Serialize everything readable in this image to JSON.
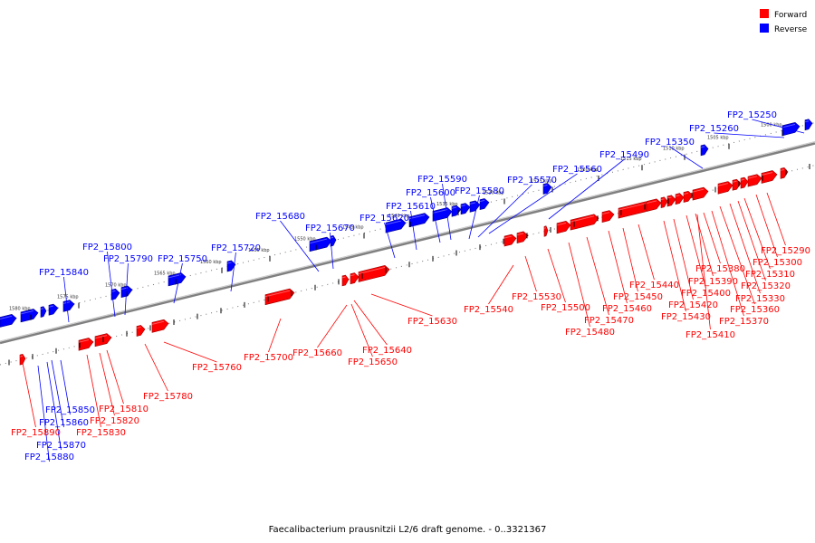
{
  "caption": "Faecalibacterium prausnitzii L2/6 draft genome. - 0..3321367",
  "legend": [
    {
      "label": "Forward",
      "color": "#ff0000"
    },
    {
      "label": "Reverse",
      "color": "#0000ff"
    }
  ],
  "colors": {
    "forward": "#ff0000",
    "forward_dark": "#990000",
    "reverse": "#0000ff",
    "reverse_dark": "#000088",
    "axis": "#808080"
  },
  "kbp_ticks": [
    "1500 kbp",
    "1505 kbp",
    "1510 kbp",
    "1515 kbp",
    "1520 kbp",
    "1525 kbp",
    "1530 kbp",
    "1535 kbp",
    "1540 kbp",
    "1545 kbp",
    "1550 kbp",
    "1555 kbp",
    "1560 kbp",
    "1565 kbp",
    "1570 kbp",
    "1575 kbp",
    "1580 kbp"
  ],
  "reverse_genes": [
    "FP2_15250",
    "FP2_15260",
    "FP2_15350",
    "FP2_15490",
    "FP2_15560",
    "FP2_15570",
    "FP2_15580",
    "FP2_15590",
    "FP2_15600",
    "FP2_15610",
    "FP2_15620",
    "FP2_15670",
    "FP2_15680",
    "FP2_15720",
    "FP2_15750",
    "FP2_15790",
    "FP2_15800",
    "FP2_15840",
    "FP2_15850",
    "FP2_15860",
    "FP2_15870",
    "FP2_15880"
  ],
  "forward_genes": [
    "FP2_15290",
    "FP2_15300",
    "FP2_15310",
    "FP2_15320",
    "FP2_15330",
    "FP2_15360",
    "FP2_15370",
    "FP2_15380",
    "FP2_15390",
    "FP2_15400",
    "FP2_15410",
    "FP2_15420",
    "FP2_15430",
    "FP2_15440",
    "FP2_15450",
    "FP2_15460",
    "FP2_15470",
    "FP2_15480",
    "FP2_15500",
    "FP2_15530",
    "FP2_15540",
    "FP2_15630",
    "FP2_15640",
    "FP2_15650",
    "FP2_15660",
    "FP2_15700",
    "FP2_15760",
    "FP2_15780",
    "FP2_15810",
    "FP2_15820",
    "FP2_15830",
    "FP2_15890"
  ]
}
